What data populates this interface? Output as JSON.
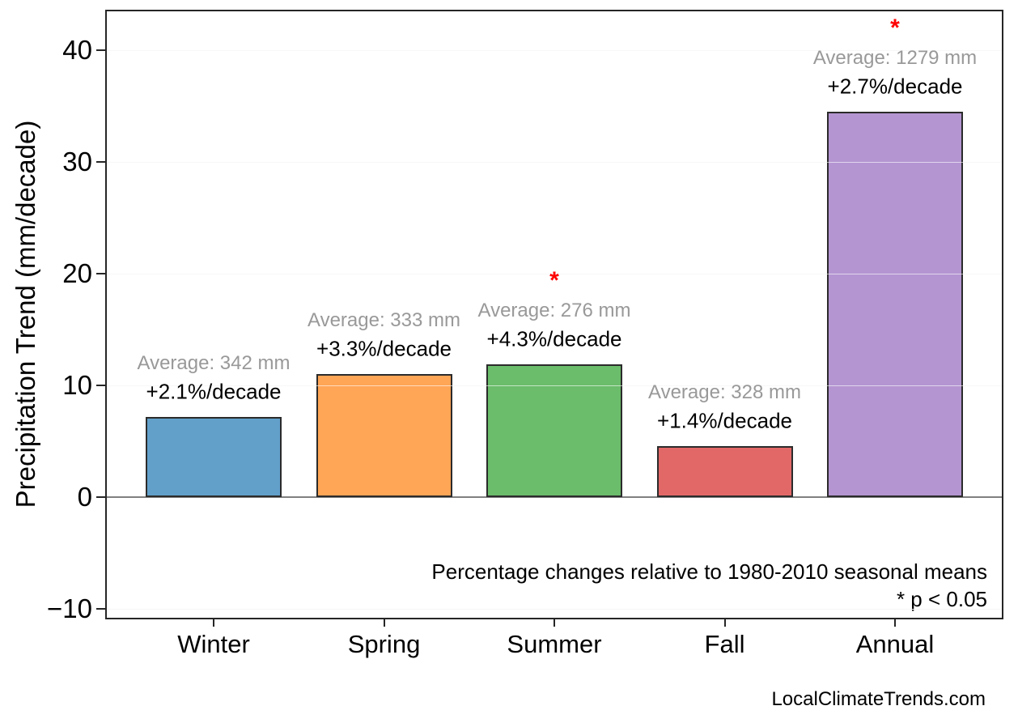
{
  "chart_data": {
    "type": "bar",
    "title": "",
    "ylabel": "Precipitation Trend (mm/decade)",
    "xlabel": "",
    "categories": [
      "Winter",
      "Spring",
      "Summer",
      "Fall",
      "Annual"
    ],
    "values": [
      7.2,
      11.0,
      11.9,
      4.6,
      34.5
    ],
    "averages_mm": [
      342,
      333,
      276,
      328,
      1279
    ],
    "percent_per_decade": [
      2.1,
      3.3,
      4.3,
      1.4,
      2.7
    ],
    "significant": [
      false,
      false,
      true,
      false,
      true
    ],
    "annotations": [
      {
        "average": "Average: 342 mm",
        "trend": "+2.1%/decade"
      },
      {
        "average": "Average: 333 mm",
        "trend": "+3.3%/decade"
      },
      {
        "average": "Average: 276 mm",
        "trend": "+4.3%/decade"
      },
      {
        "average": "Average: 328 mm",
        "trend": "+1.4%/decade"
      },
      {
        "average": "Average: 1279 mm",
        "trend": "+2.7%/decade"
      }
    ],
    "significance_marker": "*",
    "yticks": [
      -10,
      0,
      10,
      20,
      30,
      40
    ],
    "ylim": [
      -10.9,
      43.6
    ],
    "grid": "horizontal",
    "legend": "none",
    "bar_colors": [
      "#62A0CA",
      "#FFA556",
      "#6BBC6B",
      "#E26868",
      "#B495D1"
    ],
    "note_line1": "Percentage changes relative to 1980-2010 seasonal means",
    "note_line2": "* p < 0.05",
    "watermark": "LocalClimateTrends.com",
    "colors": {
      "bar_edge": "#2b2b2b",
      "average_text": "#999999",
      "trend_text": "#000000",
      "marker": "#ff0000",
      "grid_line": "#ececec",
      "grid_overlay": "rgba(255,255,255,0.6)",
      "zero_line": "#808080",
      "frame": "#262626",
      "tick_text": "#000000"
    }
  }
}
